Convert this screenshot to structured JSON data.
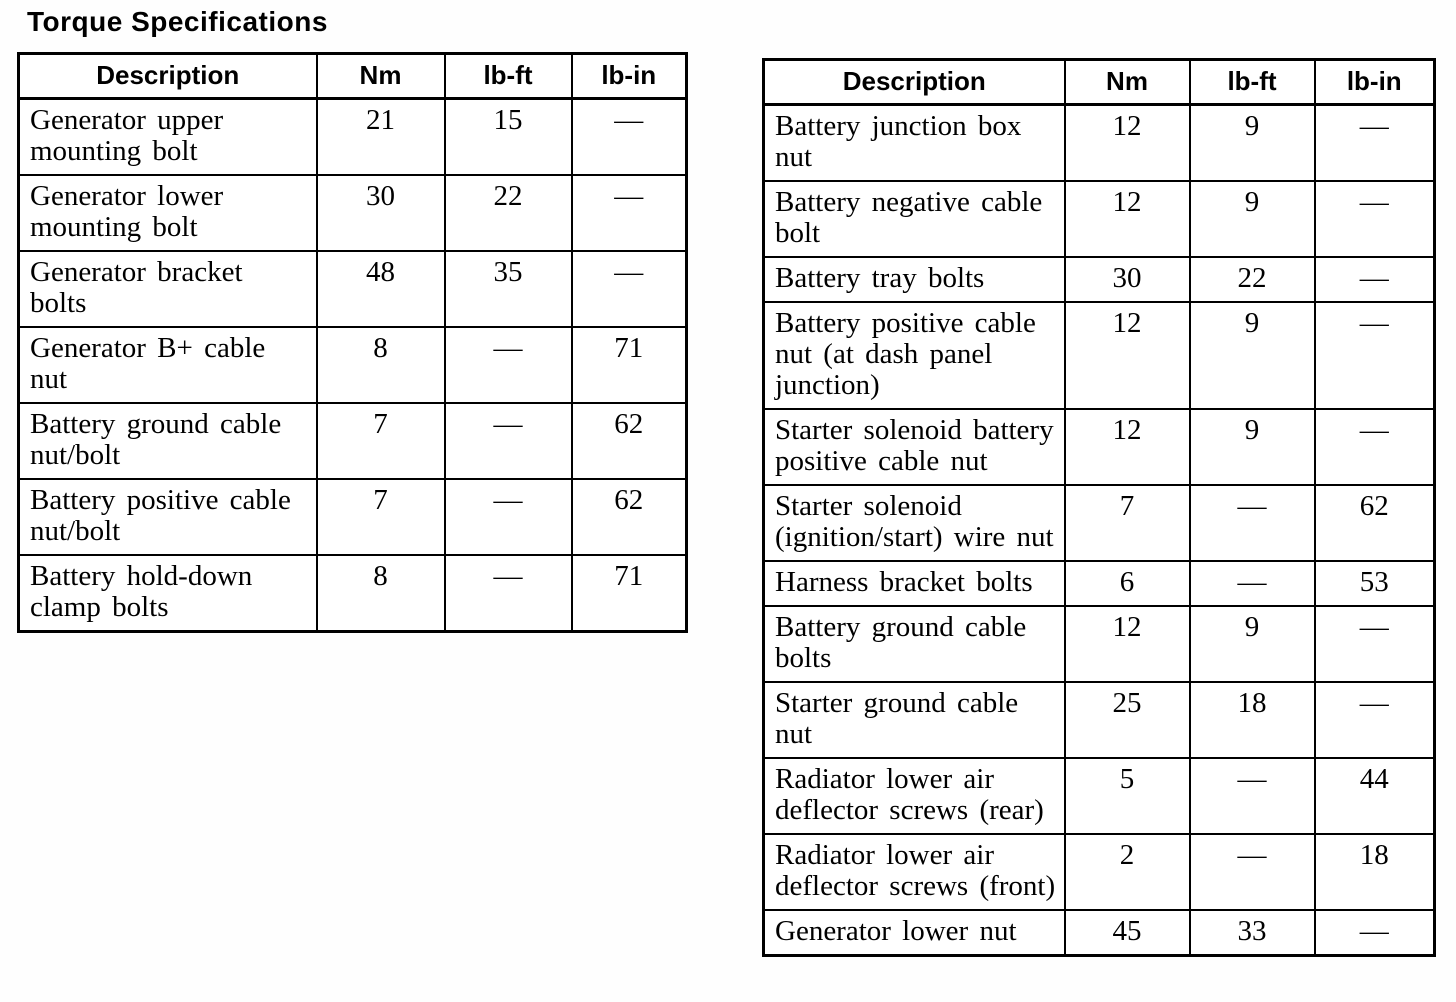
{
  "page_title": "Torque Specifications",
  "tables": [
    {
      "id": "left",
      "headers": [
        "Description",
        "Nm",
        "lb-ft",
        "lb-in"
      ],
      "rows": [
        {
          "description": "Generator upper\nmounting bolt",
          "nm": "21",
          "lb_ft": "15",
          "lb_in": "—"
        },
        {
          "description": "Generator lower\nmounting bolt",
          "nm": "30",
          "lb_ft": "22",
          "lb_in": "—"
        },
        {
          "description": "Generator bracket bolts",
          "nm": "48",
          "lb_ft": "35",
          "lb_in": "—"
        },
        {
          "description": "Generator B+ cable nut",
          "nm": "8",
          "lb_ft": "—",
          "lb_in": "71"
        },
        {
          "description": "Battery ground cable\nnut/bolt",
          "nm": "7",
          "lb_ft": "—",
          "lb_in": "62"
        },
        {
          "description": "Battery positive cable\nnut/bolt",
          "nm": "7",
          "lb_ft": "—",
          "lb_in": "62"
        },
        {
          "description": "Battery hold-down\nclamp bolts",
          "nm": "8",
          "lb_ft": "—",
          "lb_in": "71"
        }
      ]
    },
    {
      "id": "right",
      "headers": [
        "Description",
        "Nm",
        "lb-ft",
        "lb-in"
      ],
      "rows": [
        {
          "description": "Battery junction box\nnut",
          "nm": "12",
          "lb_ft": "9",
          "lb_in": "—"
        },
        {
          "description": "Battery negative cable\nbolt",
          "nm": "12",
          "lb_ft": "9",
          "lb_in": "—"
        },
        {
          "description": "Battery tray bolts",
          "nm": "30",
          "lb_ft": "22",
          "lb_in": "—"
        },
        {
          "description": "Battery positive cable\nnut (at dash panel\njunction)",
          "nm": "12",
          "lb_ft": "9",
          "lb_in": "—"
        },
        {
          "description": "Starter solenoid battery\npositive cable nut",
          "nm": "12",
          "lb_ft": "9",
          "lb_in": "—"
        },
        {
          "description": "Starter solenoid\n(ignition/start) wire nut",
          "nm": "7",
          "lb_ft": "—",
          "lb_in": "62"
        },
        {
          "description": "Harness bracket bolts",
          "nm": "6",
          "lb_ft": "—",
          "lb_in": "53"
        },
        {
          "description": "Battery ground cable\nbolts",
          "nm": "12",
          "lb_ft": "9",
          "lb_in": "—"
        },
        {
          "description": "Starter ground cable\nnut",
          "nm": "25",
          "lb_ft": "18",
          "lb_in": "—"
        },
        {
          "description": "Radiator lower air\ndeflector screws (rear)",
          "nm": "5",
          "lb_ft": "—",
          "lb_in": "44"
        },
        {
          "description": "Radiator lower air\ndeflector screws (front)",
          "nm": "2",
          "lb_ft": "—",
          "lb_in": "18"
        },
        {
          "description": "Generator lower nut",
          "nm": "45",
          "lb_ft": "33",
          "lb_in": "—"
        }
      ]
    }
  ]
}
